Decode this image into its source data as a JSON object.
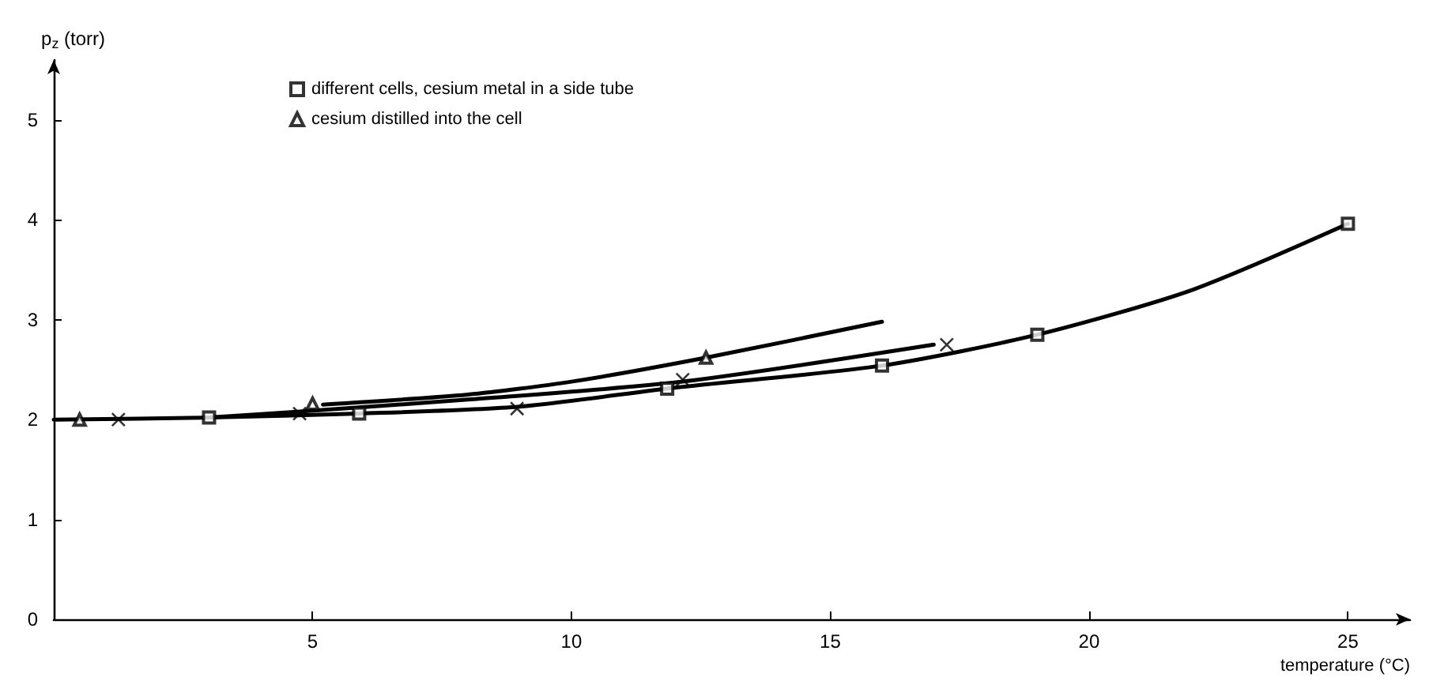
{
  "chart_data": {
    "type": "scatter",
    "xlabel": "temperature (°C)",
    "ylabel": "p$_{z}$ (torr)",
    "xlim": [
      0,
      26.2
    ],
    "ylim": [
      0,
      5.6
    ],
    "xticks": [
      5,
      10,
      15,
      20,
      25
    ],
    "yticks": [
      0,
      1,
      2,
      3,
      4,
      5
    ],
    "grid": false,
    "legend": "top",
    "series": [
      {
        "name": "different cells, cesium metal in a side tube",
        "color": "#000000",
        "marker": "square",
        "x": [
          3,
          5.9,
          11.85,
          16,
          19,
          25
        ],
        "values": [
          2.02,
          2.06,
          2.31,
          2.54,
          2.85,
          3.96
        ]
      },
      {
        "color": "#000000",
        "marker": "cross",
        "x": [
          1.25,
          4.75,
          8.95,
          12.15,
          17.25
        ],
        "values": [
          2.0,
          2.06,
          2.11,
          2.4,
          2.75
        ]
      },
      {
        "name": "cesium distilled into the cell",
        "color": "#000000",
        "marker": "triangle",
        "x": [
          0.5,
          5,
          12.6
        ],
        "values": [
          2.0,
          2.16,
          2.62
        ]
      },
      {
        "type": "line",
        "color": "#000000",
        "marker": "none",
        "x": [
          0,
          3,
          5.9,
          9,
          12,
          16,
          19,
          22,
          25
        ],
        "values": [
          2.0,
          2.02,
          2.06,
          2.13,
          2.32,
          2.54,
          2.85,
          3.3,
          3.96
        ]
      },
      {
        "type": "line",
        "color": "#000000",
        "marker": "none",
        "x": [
          3,
          4.75,
          8,
          12.15,
          17
        ],
        "values": [
          2.02,
          2.08,
          2.2,
          2.38,
          2.75
        ]
      },
      {
        "type": "line",
        "color": "#000000",
        "marker": "none",
        "x": [
          5.2,
          8,
          10,
          12.6,
          16
        ],
        "values": [
          2.15,
          2.25,
          2.38,
          2.62,
          2.98
        ]
      }
    ]
  }
}
